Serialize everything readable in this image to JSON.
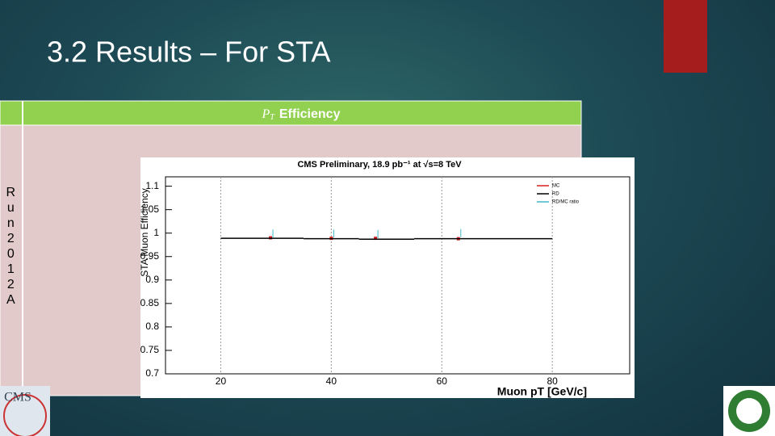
{
  "slide": {
    "title": "3.2 Results – For STA"
  },
  "table": {
    "header": {
      "symbol": "P",
      "subscript": "T",
      "text": "Efficiency"
    },
    "row_label": "Run2012A"
  },
  "logos": {
    "cms": "CMS"
  },
  "chart_data": {
    "type": "step",
    "title": "CMS Preliminary, 18.9 pb⁻¹ at √s=8 TeV",
    "ylabel": "STA Muon Efficiency",
    "xlabel": "Muon pT [GeV/c]",
    "xlim": [
      10,
      94
    ],
    "ylim": [
      0.7,
      1.12
    ],
    "xticks": [
      20,
      40,
      60,
      80
    ],
    "yticks": [
      0.7,
      0.75,
      0.8,
      0.85,
      0.9,
      0.95,
      1,
      1.05,
      1.1
    ],
    "series": [
      {
        "name": "MC",
        "color": "#d62020",
        "x": [
          29,
          40,
          48,
          63
        ],
        "values": [
          0.99,
          0.989,
          0.989,
          0.988
        ]
      },
      {
        "name": "RD",
        "color": "#000000",
        "bins": [
          20,
          35,
          45,
          55,
          80
        ],
        "values": [
          0.989,
          0.988,
          0.987,
          0.988
        ]
      },
      {
        "name": "RD/MC ratio",
        "color": "#40b8c8",
        "x": [
          29,
          40,
          48,
          63
        ],
        "values": [
          0.999,
          0.999,
          0.998,
          1.0
        ]
      }
    ]
  }
}
